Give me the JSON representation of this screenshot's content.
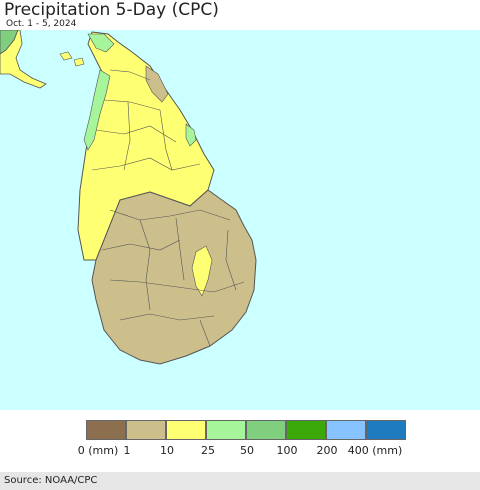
{
  "header": {
    "title": "Precipitation 5-Day (CPC)",
    "date_range": "Oct. 1 - 5, 2024"
  },
  "map": {
    "ocean_color": "#ccffff",
    "border_color": "#555555"
  },
  "legend": {
    "swatches": [
      {
        "color": "#8b6f4e"
      },
      {
        "color": "#cdbf8c"
      },
      {
        "color": "#ffff73"
      },
      {
        "color": "#a6f59a"
      },
      {
        "color": "#7fcf7f"
      },
      {
        "color": "#3ca90a"
      },
      {
        "color": "#87c4ff"
      },
      {
        "color": "#1e7bc0"
      }
    ],
    "ticks": [
      "0 (mm)",
      "1",
      "10",
      "25",
      "50",
      "100",
      "200",
      "400 (mm)"
    ]
  },
  "footer": {
    "source": "Source: NOAA/CPC"
  }
}
